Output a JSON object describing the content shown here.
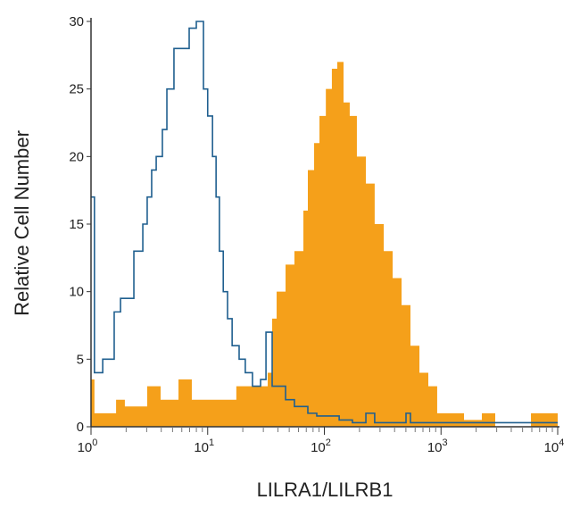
{
  "chart_data": {
    "type": "area",
    "title": "",
    "xlabel": "LILRA1/LILRB1",
    "ylabel": "Relative Cell Number",
    "xscale": "log",
    "xlim": [
      1,
      10000
    ],
    "ylim": [
      0,
      30
    ],
    "xticks": [
      {
        "base": "10",
        "exp": "0"
      },
      {
        "base": "10",
        "exp": "1"
      },
      {
        "base": "10",
        "exp": "2"
      },
      {
        "base": "10",
        "exp": "3"
      },
      {
        "base": "10",
        "exp": "4"
      }
    ],
    "yticks": [
      "0",
      "5",
      "10",
      "15",
      "20",
      "25",
      "30"
    ],
    "grid": false,
    "series": [
      {
        "style": "step-outline",
        "color": "#1f5f8f",
        "points": [
          [
            1,
            17
          ],
          [
            1.07,
            4
          ],
          [
            1.26,
            5
          ],
          [
            1.37,
            5
          ],
          [
            1.58,
            8.5
          ],
          [
            1.79,
            9.5
          ],
          [
            2.13,
            9.5
          ],
          [
            2.33,
            13
          ],
          [
            2.78,
            15
          ],
          [
            3.03,
            17
          ],
          [
            3.31,
            19
          ],
          [
            3.62,
            20
          ],
          [
            4.09,
            22
          ],
          [
            4.47,
            25
          ],
          [
            5.14,
            28
          ],
          [
            6.14,
            28
          ],
          [
            6.94,
            29.5
          ],
          [
            7.99,
            30
          ],
          [
            9.2,
            25
          ],
          [
            10,
            23
          ],
          [
            11,
            20
          ],
          [
            11.8,
            17
          ],
          [
            12.6,
            13
          ],
          [
            13.6,
            10
          ],
          [
            14.8,
            8
          ],
          [
            16.2,
            6
          ],
          [
            18.6,
            5
          ],
          [
            21,
            4
          ],
          [
            24.2,
            3
          ],
          [
            28.4,
            3.5
          ],
          [
            31.6,
            7
          ],
          [
            35.7,
            3
          ],
          [
            46.5,
            2
          ],
          [
            55.4,
            1.5
          ],
          [
            72.2,
            1
          ],
          [
            86.1,
            0.8
          ],
          [
            134,
            0.5
          ],
          [
            174,
            0.3
          ],
          [
            227,
            1
          ],
          [
            270,
            0.3
          ],
          [
            501,
            1
          ],
          [
            547,
            0.3
          ],
          [
            10000,
            0.3
          ]
        ]
      },
      {
        "style": "step-filled",
        "color": "#f5a01a",
        "points": [
          [
            1,
            3.5
          ],
          [
            1.07,
            1
          ],
          [
            1.64,
            2
          ],
          [
            1.95,
            1.5
          ],
          [
            2.54,
            1.5
          ],
          [
            3.03,
            3
          ],
          [
            3.95,
            2
          ],
          [
            5.62,
            3.5
          ],
          [
            7.31,
            2
          ],
          [
            11.4,
            2
          ],
          [
            17.6,
            3
          ],
          [
            27.4,
            3
          ],
          [
            32.7,
            4
          ],
          [
            35.7,
            8
          ],
          [
            39,
            10
          ],
          [
            46.5,
            12
          ],
          [
            55.4,
            13
          ],
          [
            66.1,
            16
          ],
          [
            72.2,
            19
          ],
          [
            81.7,
            21
          ],
          [
            90.8,
            23
          ],
          [
            103,
            25
          ],
          [
            116,
            26.5
          ],
          [
            129,
            27
          ],
          [
            146,
            24
          ],
          [
            165,
            23
          ],
          [
            190,
            20
          ],
          [
            227,
            18
          ],
          [
            270,
            15
          ],
          [
            323,
            13
          ],
          [
            385,
            11
          ],
          [
            459,
            9
          ],
          [
            547,
            6
          ],
          [
            653,
            4
          ],
          [
            778,
            3
          ],
          [
            927,
            1
          ],
          [
            1106,
            1
          ],
          [
            1574,
            0.5
          ],
          [
            2051,
            0.5
          ],
          [
            2239,
            1
          ],
          [
            2915,
            0
          ],
          [
            5400,
            0
          ],
          [
            5900,
            1
          ],
          [
            10000,
            1
          ]
        ]
      }
    ]
  }
}
